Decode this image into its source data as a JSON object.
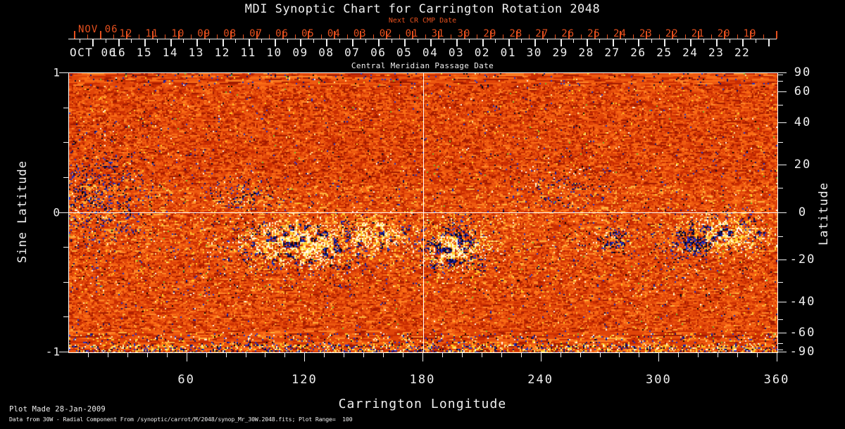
{
  "title": "MDI Synoptic Chart for Carrington Rotation 2048",
  "top_axis": {
    "next_cr_label": "Next CR CMP Date",
    "axis_title": "Central Meridian Passage Date",
    "next_cr_month": "NOV 06",
    "cmp_month": "OCT 06",
    "next_cr_dates": [
      "12",
      "11",
      "10",
      "09",
      "08",
      "07",
      "06",
      "05",
      "04",
      "03",
      "02",
      "01",
      "31",
      "30",
      "29",
      "28",
      "27",
      "26",
      "25",
      "24",
      "23",
      "22",
      "21",
      "20",
      "19"
    ],
    "cmp_dates": [
      "16",
      "15",
      "14",
      "13",
      "12",
      "11",
      "10",
      "09",
      "08",
      "07",
      "06",
      "05",
      "04",
      "03",
      "02",
      "01",
      "30",
      "29",
      "28",
      "27",
      "26",
      "25",
      "24",
      "23",
      "22"
    ]
  },
  "left_axis": {
    "title": "Sine Latitude",
    "tick_labels": [
      "1",
      "0",
      "-1"
    ],
    "tick_values": [
      1,
      0,
      -1
    ],
    "minor_step_sine": 0.25
  },
  "right_axis": {
    "title": "Latitude",
    "tick_labels": [
      "90",
      "60",
      "40",
      "20",
      "0",
      "-20",
      "-40",
      "-60",
      "-90"
    ],
    "tick_values": [
      90,
      60,
      40,
      20,
      0,
      -20,
      -40,
      -60,
      -90
    ],
    "minor_step_deg": 10
  },
  "bottom_axis": {
    "title": "Carrington Longitude",
    "tick_labels": [
      "60",
      "120",
      "180",
      "240",
      "300",
      "360"
    ],
    "tick_values": [
      60,
      120,
      180,
      240,
      300,
      360
    ],
    "minor_step_deg": 10,
    "range": [
      0,
      360
    ]
  },
  "footer": {
    "line1": "Plot Made 28-Jan-2009",
    "line2": "Data from 30W - Radial Component From /synoptic/carrot/M/2048/synop_Mr_30W.2048.fits; Plot Range=  100"
  },
  "colors": {
    "background": "#000000",
    "text": "#f0f0f0",
    "date_accent": "#e6501e",
    "frame": "#ffffff"
  },
  "chart_data": {
    "type": "heatmap",
    "title": "MDI Synoptic Chart for Carrington Rotation 2048",
    "xlabel": "Carrington Longitude",
    "ylabel_left": "Sine Latitude",
    "ylabel_right": "Latitude",
    "x_range": [
      0,
      360
    ],
    "y_range_sine_latitude": [
      -1,
      1
    ],
    "plot_range_gauss": 100,
    "grid": {
      "horizontal_line_at_sine_lat": 0,
      "vertical_line_at_longitude": 180
    },
    "date_axis": {
      "start_frac_red": 0.0815,
      "start_frac_white": 0.0706,
      "step_frac": 0.0367
    },
    "palette": {
      "base_colors": [
        "#a31b00",
        "#c92d02",
        "#e04509",
        "#ef5a10",
        "#fb6d16",
        "#ff8526",
        "#ffb23c"
      ],
      "base_thresholds": [
        0.1,
        0.32,
        0.58,
        0.8,
        0.93,
        0.985,
        1.0
      ],
      "bright_colors": [
        "#ffd029",
        "#ffeb96",
        "#fffbe8"
      ],
      "dark_colors": [
        "#2233c8",
        "#101070",
        "#050528",
        "#000000"
      ],
      "rare_green": "#76b82a"
    },
    "active_regions": [
      {
        "lon": 119,
        "lat": -13,
        "rlon": 27,
        "rsine": 0.14,
        "white_bias": 0.6,
        "strength": 0.75
      },
      {
        "lon": 153,
        "lat": -9,
        "rlon": 18,
        "rsine": 0.11,
        "white_bias": 0.75,
        "strength": 0.6
      },
      {
        "lon": 196,
        "lat": -14.5,
        "rlon": 14,
        "rsine": 0.13,
        "white_bias": 0.5,
        "strength": 0.8
      },
      {
        "lon": 333,
        "lat": -8.6,
        "rlon": 18,
        "rsine": 0.11,
        "white_bias": 0.72,
        "strength": 0.7
      },
      {
        "lon": 317,
        "lat": -11.5,
        "rlon": 10,
        "rsine": 0.09,
        "white_bias": 0.18,
        "strength": 0.7
      },
      {
        "lon": 279,
        "lat": -11.5,
        "rlon": 8,
        "rsine": 0.07,
        "white_bias": 0.35,
        "strength": 0.5
      },
      {
        "lon": 13,
        "lat": 9,
        "rlon": 22,
        "rsine": 0.28,
        "white_bias": 0.12,
        "strength": 0.25
      },
      {
        "lon": 252,
        "lat": 11,
        "rlon": 18,
        "rsine": 0.14,
        "white_bias": 0.25,
        "strength": 0.12
      },
      {
        "lon": 88,
        "lat": 7.5,
        "rlon": 11,
        "rsine": 0.1,
        "white_bias": 0.2,
        "strength": 0.25
      }
    ],
    "noise_bands": {
      "south_speckle_yfrac": [
        0.5,
        0.8
      ],
      "north_speckle_yfrac": [
        0.28,
        0.5
      ],
      "polar_streak_top_yfrac": 0.045,
      "polar_streak_bottom_yfrac": 0.92
    }
  }
}
